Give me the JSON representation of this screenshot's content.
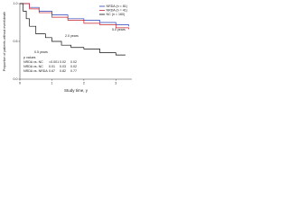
{
  "chart_data": {
    "type": "line",
    "step": true,
    "y_label": "Proportion of patients without event/death",
    "x_label": "Study time, y",
    "xlim": [
      0,
      3.5
    ],
    "xticks": [
      0,
      1,
      2,
      3
    ],
    "ylim": [
      0,
      1
    ],
    "yticks": [
      {
        "value": 0,
        "label": "0.0"
      },
      {
        "value": 0.5,
        "label": "0.5"
      },
      {
        "value": 1,
        "label": "1.0"
      }
    ],
    "legend": "top-right",
    "series": [
      {
        "name": "NRDA (n = 81)",
        "color": "#2a3fb8",
        "x": [
          0,
          0.3,
          0.6,
          1.0,
          1.5,
          2.0,
          2.5,
          3.0,
          3.4
        ],
        "values": [
          1,
          0.95,
          0.9,
          0.85,
          0.8,
          0.78,
          0.75,
          0.72,
          0.7
        ]
      },
      {
        "name": "NRDA (n = 41)",
        "color": "#c8202a",
        "x": [
          0,
          0.3,
          0.6,
          1.0,
          1.5,
          2.0,
          2.5,
          3.0,
          3.4
        ],
        "values": [
          1,
          0.93,
          0.88,
          0.82,
          0.78,
          0.74,
          0.72,
          0.68,
          0.66
        ]
      },
      {
        "name": "NC (n = 160)",
        "color": "#111111",
        "x": [
          0,
          0.1,
          0.2,
          0.3,
          0.5,
          0.8,
          1.0,
          1.3,
          1.6,
          2.0,
          2.5,
          3.0,
          3.3
        ],
        "values": [
          1,
          0.9,
          0.8,
          0.7,
          0.6,
          0.55,
          0.5,
          0.45,
          0.42,
          0.4,
          0.35,
          0.32,
          0.32
        ]
      }
    ],
    "annotations": [
      "0.5 years",
      "2.0 years",
      "5.0 years"
    ],
    "pvalue_table": {
      "header": "p values",
      "rows": [
        [
          "NRDA vs. NC",
          "<0.001",
          "0.02",
          "0.02"
        ],
        [
          "NRDA vs. NC",
          "0.01",
          "0.03",
          "0.02"
        ],
        [
          "NRDA vs. NRDA",
          "0.67",
          "0.82",
          "0.77"
        ]
      ]
    }
  }
}
